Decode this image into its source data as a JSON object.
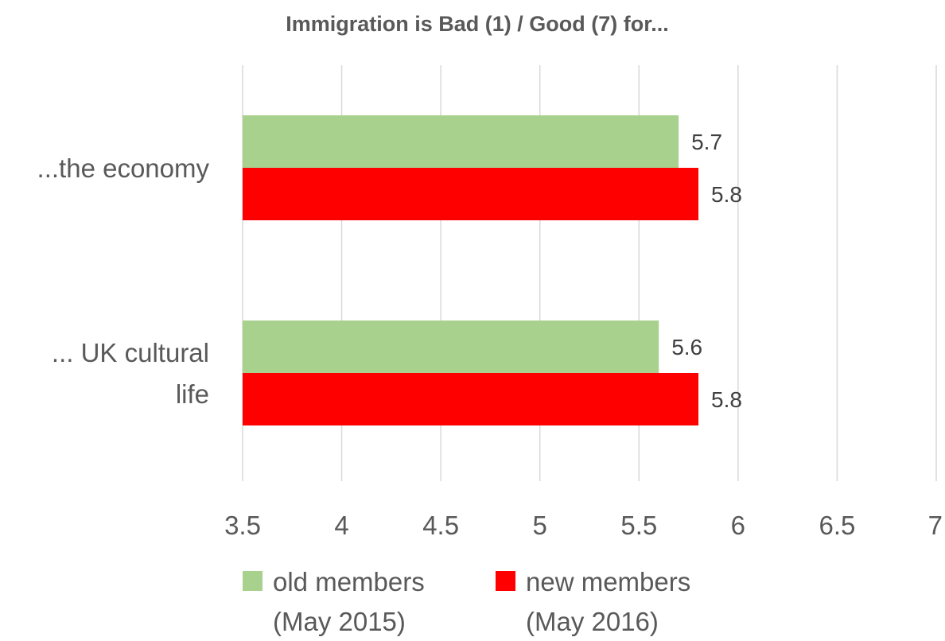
{
  "chart_data": {
    "type": "bar",
    "orientation": "horizontal",
    "title": "Immigration is Bad (1) / Good (7) for...",
    "categories": [
      [
        "...the economy"
      ],
      [
        "... UK cultural",
        "life"
      ]
    ],
    "series": [
      {
        "name": [
          "old members",
          "(May 2015)"
        ],
        "color": "#a9d18e",
        "values": [
          5.7,
          5.6
        ],
        "labels": [
          "5.7",
          "5.6"
        ]
      },
      {
        "name": [
          "new members",
          "(May 2016)"
        ],
        "color": "#ff0000",
        "values": [
          5.8,
          5.8
        ],
        "labels": [
          "5.8",
          "5.8"
        ]
      }
    ],
    "xlim": [
      3.5,
      7
    ],
    "xticks": [
      3.5,
      4,
      4.5,
      5,
      5.5,
      6,
      6.5,
      7
    ],
    "xtick_labels": [
      "3.5",
      "4",
      "4.5",
      "5",
      "5.5",
      "6",
      "6.5",
      "7"
    ],
    "grid": "vertical",
    "legend_position": "bottom"
  }
}
